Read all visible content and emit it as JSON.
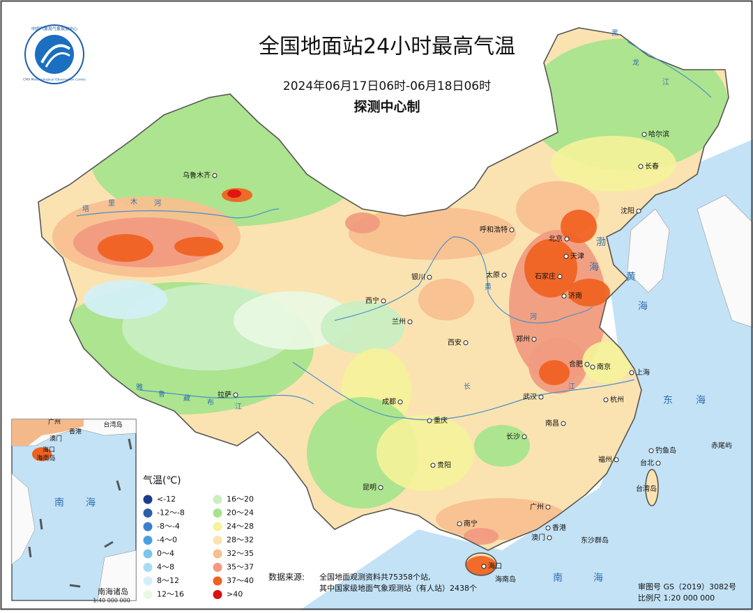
{
  "header": {
    "title": "全国地面站24小时最高气温",
    "subtitle": "2024年06月17日06时-06月18日06时",
    "producer": "探测中心制",
    "logo_text": "中国气象局气象探测中心",
    "logo_text_en": "CMA Meteorological Observation Centre"
  },
  "map": {
    "places": [
      "乌鲁木齐",
      "哈尔滨",
      "长春",
      "沈阳",
      "呼和浩特",
      "北京",
      "天津",
      "石家庄",
      "太原",
      "银川",
      "济南",
      "西宁",
      "兰州",
      "郑州",
      "西安",
      "合肥",
      "南京",
      "上海",
      "拉萨",
      "成都",
      "武汉",
      "杭州",
      "重庆",
      "长沙",
      "南昌",
      "福州",
      "台北",
      "贵阳",
      "昆明",
      "南宁",
      "广州",
      "香港",
      "澳门",
      "海口",
      "钓鱼岛",
      "赤尾屿",
      "台湾岛",
      "东沙群岛",
      "海南岛"
    ],
    "water_labels": [
      "黑",
      "龙",
      "江",
      "塔",
      "里",
      "木",
      "河",
      "雅",
      "鲁",
      "藏",
      "布",
      "江",
      "黄",
      "河",
      "长",
      "江",
      "渤",
      "海",
      "黄",
      "海",
      "东",
      "海",
      "南",
      "海",
      "南",
      "海"
    ]
  },
  "inset": {
    "title": "南海诸岛",
    "scale": "1:40 000 000",
    "labels": [
      "广州",
      "香港",
      "澳门",
      "台湾岛",
      "海口",
      "海南岛",
      "南",
      "海"
    ]
  },
  "legend": {
    "title": "气温(℃)",
    "items": [
      {
        "label": "<-12",
        "color": "#1b3b8c"
      },
      {
        "label": "-12～-8",
        "color": "#2c5ea8"
      },
      {
        "label": "-8～-4",
        "color": "#3b7fd1"
      },
      {
        "label": "-4～0",
        "color": "#4b9fe0"
      },
      {
        "label": "0～4",
        "color": "#79c6ec"
      },
      {
        "label": "4～8",
        "color": "#a8dcf1"
      },
      {
        "label": "8～12",
        "color": "#d3f0f7"
      },
      {
        "label": "12～16",
        "color": "#e9f8e3"
      },
      {
        "label": "16～20",
        "color": "#c9efc2"
      },
      {
        "label": "20～24",
        "color": "#a6e48c"
      },
      {
        "label": "24～28",
        "color": "#f4f29a"
      },
      {
        "label": "28～32",
        "color": "#fbe3b1"
      },
      {
        "label": "32～35",
        "color": "#f7bf8f"
      },
      {
        "label": "35～37",
        "color": "#f19a80"
      },
      {
        "label": "37～40",
        "color": "#f06120"
      },
      {
        "label": ">40",
        "color": "#dc1010"
      }
    ]
  },
  "source": {
    "label": "数据来源:",
    "lines": [
      "全国地面观测资料共75358个站,",
      "其中国家级地面气象观测站（有人站）2438个"
    ]
  },
  "map_info": {
    "approval": "审图号 GS（2019）3082号",
    "scale": "比例尺 1:20 000 000"
  }
}
